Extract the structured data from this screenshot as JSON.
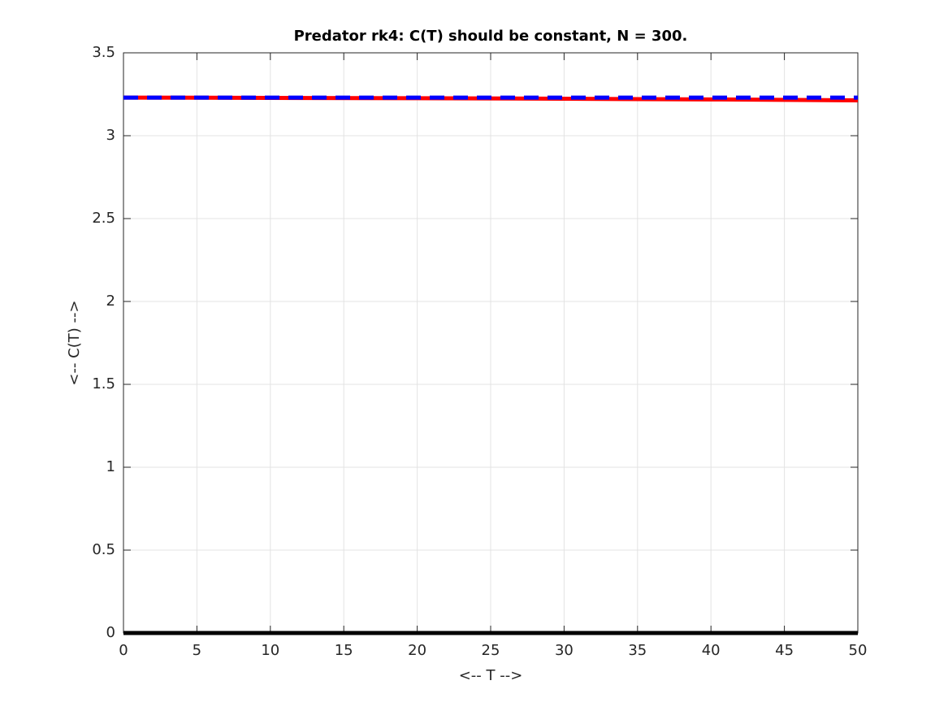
{
  "chart_data": {
    "type": "line",
    "title": "Predator rk4: C(T) should be constant, N = 300.",
    "xlabel": "<-- T -->",
    "ylabel": "<-- C(T) -->",
    "xlim": [
      0,
      50
    ],
    "xticks": [
      0,
      5,
      10,
      15,
      20,
      25,
      30,
      35,
      40,
      45,
      50
    ],
    "ylim": [
      0,
      3.5
    ],
    "yticks": [
      0,
      0.5,
      1,
      1.5,
      2,
      2.5,
      3,
      3.5
    ],
    "grid": true,
    "series": [
      {
        "color": "#ff0000",
        "dashed": false,
        "x": [
          0,
          10,
          20,
          30,
          40,
          50
        ],
        "values": [
          3.23,
          3.228,
          3.226,
          3.223,
          3.219,
          3.213
        ]
      },
      {
        "color": "#0000ff",
        "dashed": true,
        "x": [
          0,
          50
        ],
        "values": [
          3.23,
          3.23
        ]
      },
      {
        "color": "#000000",
        "dashed": false,
        "x": [
          0,
          50
        ],
        "values": [
          0,
          0
        ]
      }
    ]
  }
}
